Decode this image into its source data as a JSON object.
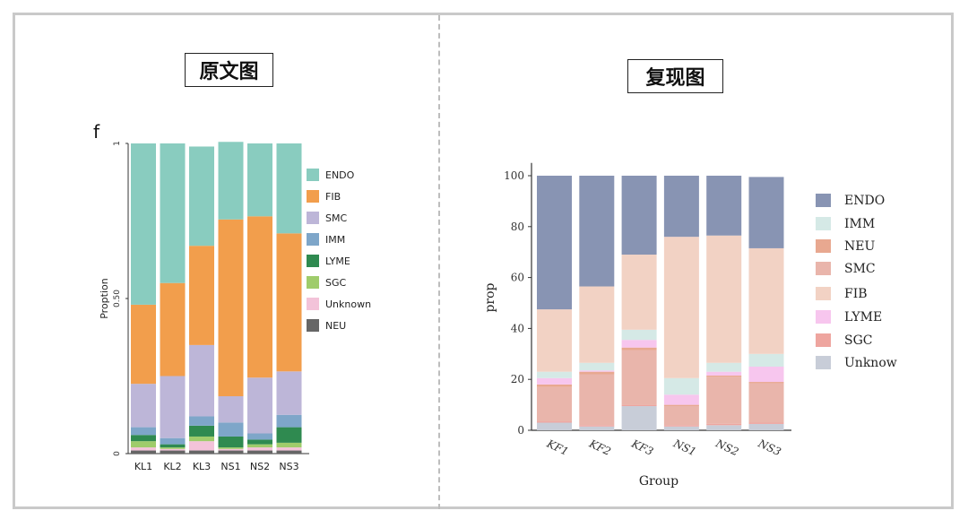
{
  "labels": {
    "left": "原文图",
    "right": "复现图",
    "panel_letter": "f"
  },
  "chart_data": [
    {
      "type": "bar",
      "stacked": true,
      "ylabel": "Proption",
      "yticks": [
        "0",
        "0.50",
        "1"
      ],
      "ylim": [
        0,
        1
      ],
      "categories": [
        "KL1",
        "KL2",
        "KL3",
        "NS1",
        "NS2",
        "NS3"
      ],
      "legend": [
        {
          "name": "ENDO",
          "color": "#89ccbf"
        },
        {
          "name": "FIB",
          "color": "#f29e4c"
        },
        {
          "name": "SMC",
          "color": "#bdb6d8"
        },
        {
          "name": "IMM",
          "color": "#7ea6c9"
        },
        {
          "name": "LYME",
          "color": "#2f8a50"
        },
        {
          "name": "SGC",
          "color": "#9fcc6b"
        },
        {
          "name": "Unknown",
          "color": "#f3c3d9"
        },
        {
          "name": "NEU",
          "color": "#666666"
        }
      ],
      "series": [
        {
          "name": "NEU",
          "color": "#666666",
          "values": [
            0.01,
            0.01,
            0.01,
            0.01,
            0.01,
            0.01
          ]
        },
        {
          "name": "Unknown",
          "color": "#f3c3d9",
          "values": [
            0.01,
            0.005,
            0.03,
            0.005,
            0.01,
            0.01
          ]
        },
        {
          "name": "SGC",
          "color": "#9fcc6b",
          "values": [
            0.02,
            0.005,
            0.015,
            0.005,
            0.01,
            0.015
          ]
        },
        {
          "name": "LYME",
          "color": "#2f8a50",
          "values": [
            0.02,
            0.01,
            0.035,
            0.035,
            0.015,
            0.05
          ]
        },
        {
          "name": "IMM",
          "color": "#7ea6c9",
          "values": [
            0.025,
            0.02,
            0.03,
            0.045,
            0.02,
            0.04
          ]
        },
        {
          "name": "SMC",
          "color": "#bdb6d8",
          "values": [
            0.14,
            0.2,
            0.23,
            0.085,
            0.18,
            0.14
          ]
        },
        {
          "name": "FIB",
          "color": "#f29e4c",
          "values": [
            0.255,
            0.3,
            0.32,
            0.57,
            0.52,
            0.445
          ]
        },
        {
          "name": "ENDO",
          "color": "#89ccbf",
          "values": [
            0.52,
            0.45,
            0.32,
            0.25,
            0.235,
            0.29
          ]
        }
      ]
    },
    {
      "type": "bar",
      "stacked": true,
      "xlabel": "Group",
      "ylabel": "prop",
      "ylim": [
        0,
        105
      ],
      "yticks": [
        0,
        20,
        40,
        60,
        80,
        100
      ],
      "categories": [
        "KF1",
        "KF2",
        "KF3",
        "NS1",
        "NS2",
        "NS3"
      ],
      "legend": [
        {
          "name": "ENDO",
          "color": "#8894b3"
        },
        {
          "name": "IMM",
          "color": "#d5e9e6"
        },
        {
          "name": "NEU",
          "color": "#e8a890"
        },
        {
          "name": "SMC",
          "color": "#e9b5ab"
        },
        {
          "name": "FIB",
          "color": "#f2d2c4"
        },
        {
          "name": "LYME",
          "color": "#f7c6ee"
        },
        {
          "name": "SGC",
          "color": "#eea59f"
        },
        {
          "name": "Unknow",
          "color": "#c8cdd8"
        }
      ],
      "series": [
        {
          "name": "Unknow",
          "color": "#c8cdd8",
          "values": [
            3,
            1.5,
            9.5,
            1.5,
            2,
            2.5
          ]
        },
        {
          "name": "SGC",
          "color": "#eea59f",
          "values": [
            0.5,
            0.5,
            0.5,
            0.5,
            0.5,
            0.5
          ]
        },
        {
          "name": "SMC",
          "color": "#e9b5ab",
          "values": [
            13.5,
            20,
            21.5,
            7.5,
            18.5,
            15.5
          ]
        },
        {
          "name": "NEU",
          "color": "#e8a890",
          "values": [
            1,
            1,
            1,
            0.5,
            0.5,
            0.5
          ]
        },
        {
          "name": "LYME",
          "color": "#f7c6ee",
          "values": [
            2.5,
            0.5,
            3,
            4,
            1.5,
            6
          ]
        },
        {
          "name": "IMM",
          "color": "#d5e9e6",
          "values": [
            2.5,
            3,
            4,
            6.5,
            3.5,
            5
          ]
        },
        {
          "name": "FIB",
          "color": "#f2d2c4",
          "values": [
            24.5,
            30,
            29.5,
            55.5,
            50,
            41.5
          ]
        },
        {
          "name": "ENDO",
          "color": "#8894b3",
          "values": [
            52.5,
            43.5,
            31,
            24,
            23.5,
            28
          ]
        }
      ]
    }
  ]
}
